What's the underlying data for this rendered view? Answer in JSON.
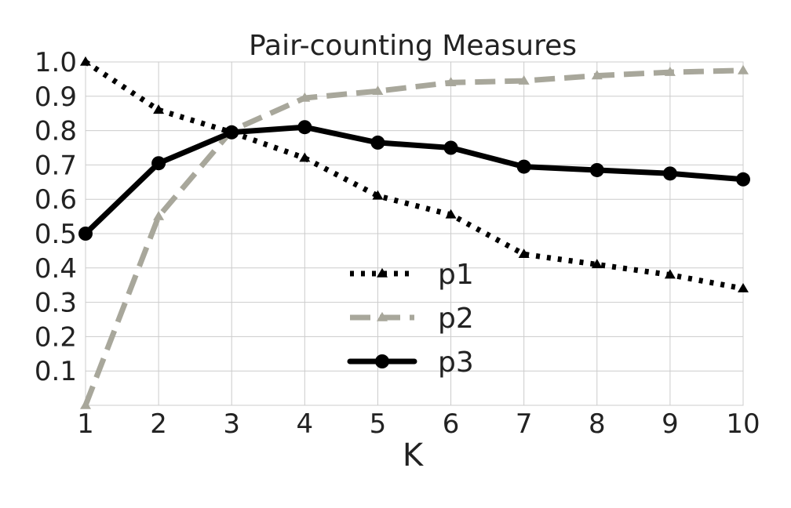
{
  "chart_data": {
    "type": "line",
    "title": "Pair-counting Measures",
    "xlabel": "K",
    "ylabel": "",
    "x": [
      1,
      2,
      3,
      4,
      5,
      6,
      7,
      8,
      9,
      10
    ],
    "xlim": [
      1,
      10
    ],
    "ylim": [
      0.0,
      1.0
    ],
    "x_ticks": [
      "1",
      "2",
      "3",
      "4",
      "5",
      "6",
      "7",
      "8",
      "9",
      "10"
    ],
    "y_ticks": [
      "0.1",
      "0.2",
      "0.3",
      "0.4",
      "0.5",
      "0.6",
      "0.7",
      "0.8",
      "0.9",
      "1.0"
    ],
    "grid": true,
    "legend_position": "center-right",
    "series": [
      {
        "name": "p1",
        "values": [
          1.0,
          0.86,
          0.795,
          0.72,
          0.61,
          0.555,
          0.44,
          0.41,
          0.38,
          0.34
        ],
        "color": "#000000",
        "line_style": "dotted",
        "marker": "triangle"
      },
      {
        "name": "p2",
        "values": [
          0.0,
          0.55,
          0.8,
          0.895,
          0.915,
          0.94,
          0.945,
          0.96,
          0.97,
          0.975
        ],
        "color": "#a8a79b",
        "line_style": "dashed",
        "marker": "triangle"
      },
      {
        "name": "p3",
        "values": [
          0.5,
          0.705,
          0.795,
          0.81,
          0.765,
          0.75,
          0.695,
          0.685,
          0.675,
          0.658
        ],
        "color": "#000000",
        "line_style": "solid",
        "marker": "circle"
      }
    ]
  }
}
